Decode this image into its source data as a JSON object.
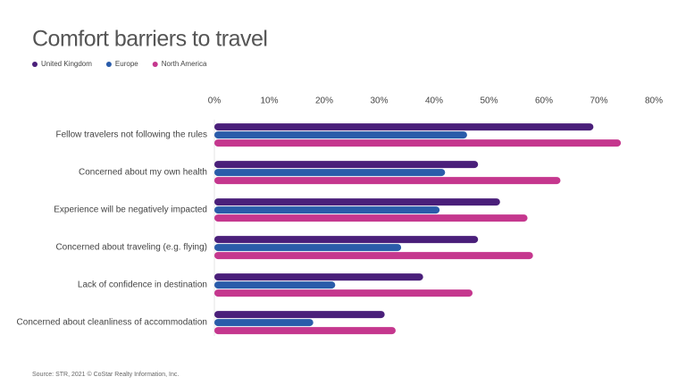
{
  "chart_data": {
    "type": "barh",
    "title": "Comfort barriers to travel",
    "categories": [
      "Fellow travelers not following the rules",
      "Concerned about my own health",
      "Experience will be negatively impacted",
      "Concerned about  traveling (e.g. flying)",
      "Lack of confidence in destination",
      "Concerned about cleanliness of accommodation"
    ],
    "series": [
      {
        "name": "United Kingdom",
        "color": "#4a1f7a",
        "values": [
          69,
          48,
          52,
          48,
          38,
          31
        ]
      },
      {
        "name": "Europe",
        "color": "#2a5caa",
        "values": [
          46,
          42,
          41,
          34,
          22,
          18
        ]
      },
      {
        "name": "North America",
        "color": "#c5378e",
        "values": [
          74,
          63,
          57,
          58,
          47,
          33
        ]
      }
    ],
    "xlim": [
      0,
      80
    ],
    "xticks": [
      {
        "value": 0,
        "label": "0%"
      },
      {
        "value": 10,
        "label": "10%"
      },
      {
        "value": 20,
        "label": "20%"
      },
      {
        "value": 30,
        "label": "30%"
      },
      {
        "value": 40,
        "label": "40%"
      },
      {
        "value": 50,
        "label": "50%"
      },
      {
        "value": 60,
        "label": "60%"
      },
      {
        "value": 70,
        "label": "70%"
      },
      {
        "value": 80,
        "label": "80%"
      }
    ],
    "grid": false,
    "source": "Source: STR, 2021 © CoStar Realty Information, Inc."
  }
}
